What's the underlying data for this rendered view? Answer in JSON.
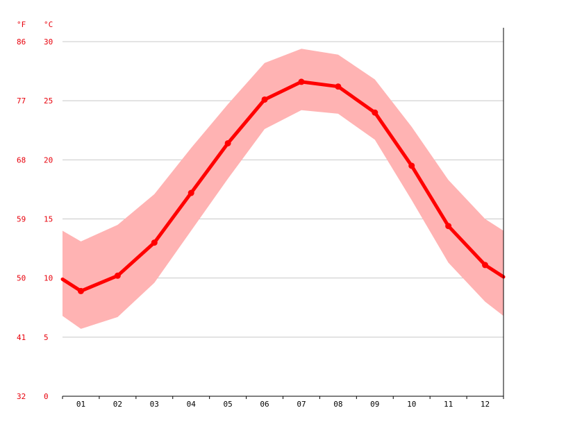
{
  "chart_data": {
    "type": "line",
    "title": "",
    "xlabel": "",
    "ylabel": "",
    "categories": [
      "01",
      "02",
      "03",
      "04",
      "05",
      "06",
      "07",
      "08",
      "09",
      "10",
      "11",
      "12"
    ],
    "series": [
      {
        "values": [
          8.9,
          10.2,
          13.0,
          17.2,
          21.4,
          25.1,
          26.6,
          26.2,
          24.0,
          19.5,
          14.4,
          11.1
        ],
        "min": [
          5.7,
          6.7,
          9.6,
          14.0,
          18.4,
          22.6,
          24.2,
          23.9,
          21.7,
          16.6,
          11.3,
          8.0
        ],
        "max": [
          13.1,
          14.5,
          17.1,
          21.0,
          24.7,
          28.2,
          29.4,
          28.9,
          26.8,
          22.8,
          18.3,
          15.0
        ]
      }
    ],
    "edge_values": {
      "start": 9.9,
      "end": 10.1,
      "start_min": 6.8,
      "end_min": 6.8,
      "start_max": 14.0,
      "end_max": 14.0
    },
    "ylim": [
      0,
      30
    ],
    "grid": true,
    "y_ticks_c": [
      "0",
      "5",
      "10",
      "15",
      "20",
      "25",
      "30"
    ],
    "y_ticks_f": [
      "32",
      "41",
      "50",
      "59",
      "68",
      "77",
      "86"
    ],
    "unit_f": "°F",
    "unit_c": "°C",
    "colors": {
      "line": "#ff0000",
      "band": "#ffb3b3",
      "axis_labels": "#e8000b",
      "grid": "#c8c8c8",
      "axis": "#000000"
    }
  }
}
